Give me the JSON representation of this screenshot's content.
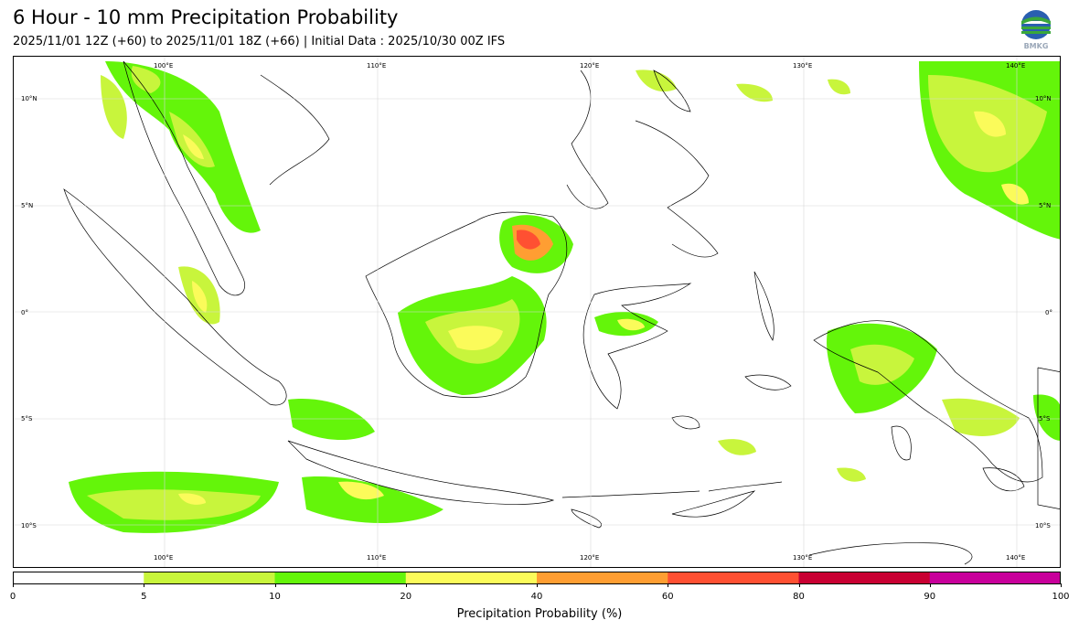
{
  "header": {
    "title": "6 Hour - 10 mm Precipitation Probability",
    "subtitle": "2025/11/01 12Z (+60) to 2025/11/01 18Z (+66) | Initial Data : 2025/10/30 00Z IFS",
    "logo_text": "BMKG"
  },
  "map": {
    "lon_labels": [
      "100°E",
      "110°E",
      "120°E",
      "130°E",
      "140°E"
    ],
    "lat_labels": [
      "10°N",
      "5°N",
      "0°",
      "5°S",
      "10°S"
    ],
    "region": "Indonesia and surrounding region"
  },
  "colorbar": {
    "title": "Precipitation Probability (%)",
    "ticks": [
      "0",
      "5",
      "10",
      "20",
      "40",
      "60",
      "80",
      "90",
      "100"
    ],
    "colors": [
      "#ffffff",
      "#c8f53c",
      "#64f50a",
      "#fbfb5a",
      "#ff9e32",
      "#ff5032",
      "#c80032",
      "#c8009b"
    ]
  }
}
